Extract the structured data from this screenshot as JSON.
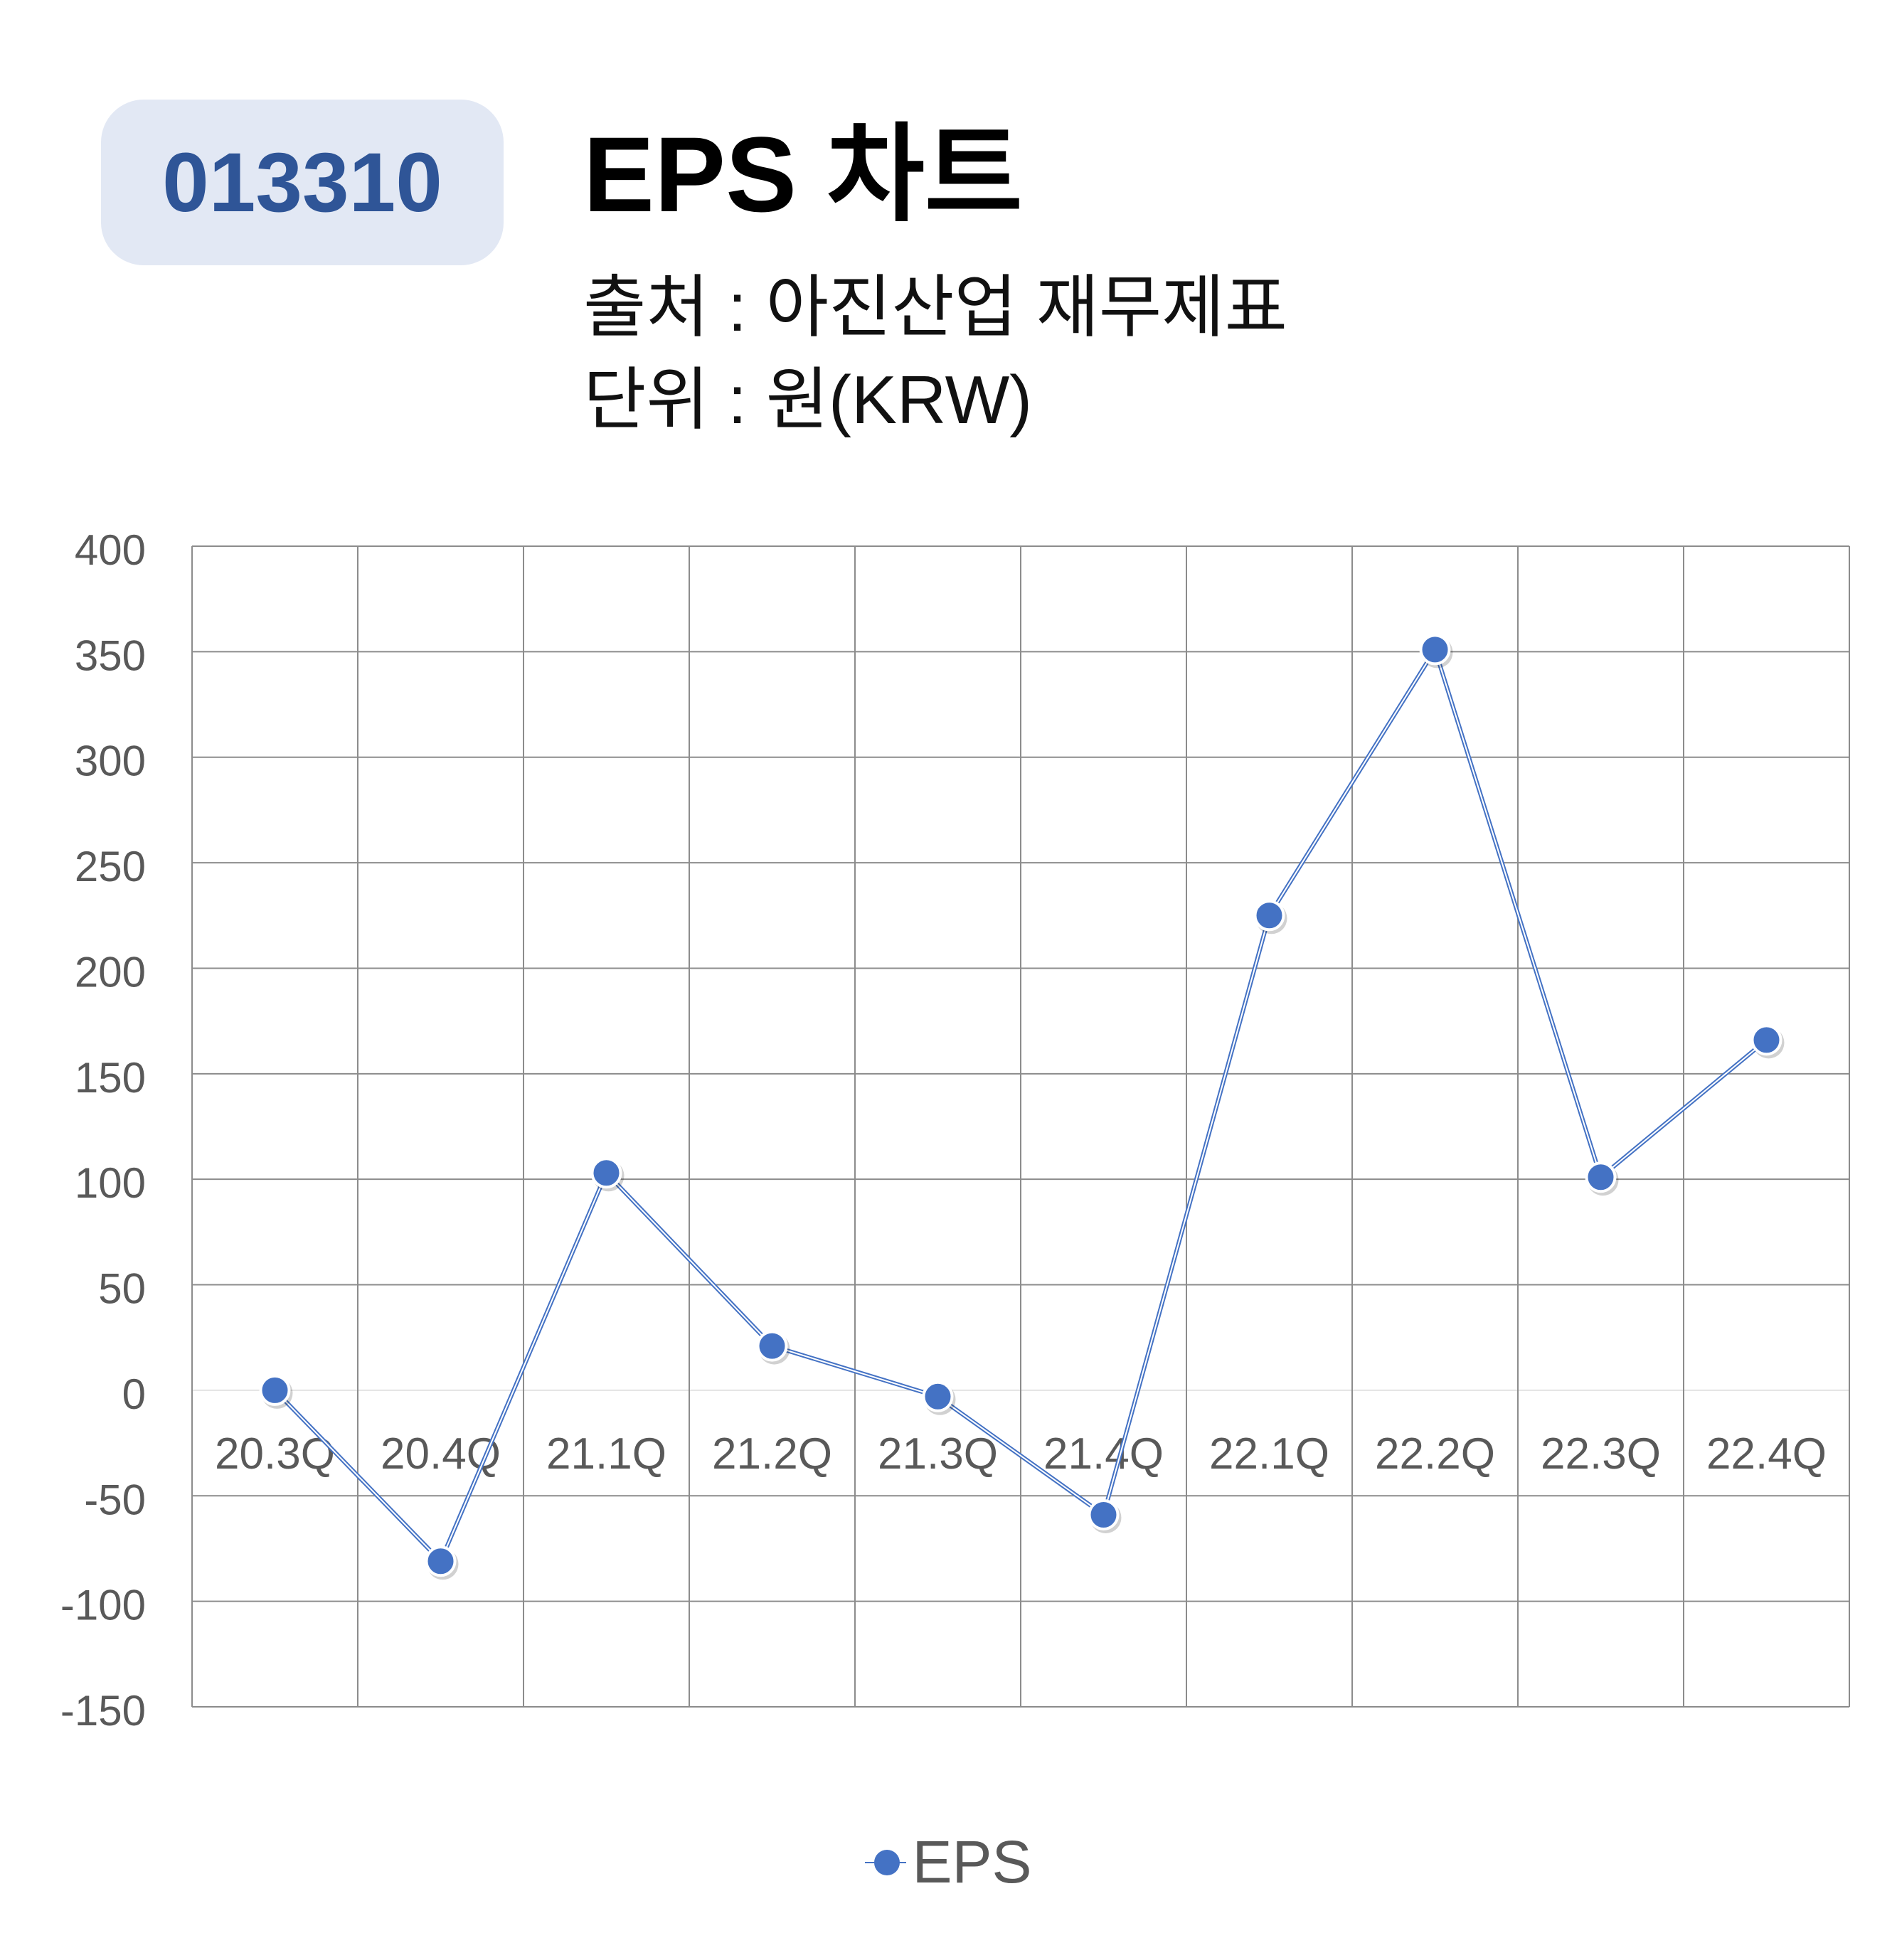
{
  "header": {
    "ticker": "013310",
    "title": "EPS 차트",
    "source": "출처 : 아진산업 재무제표",
    "unit": "단위 : 원(KRW)"
  },
  "colors": {
    "badge_bg": "#e2e8f4",
    "badge_text": "#2f5597",
    "series": "#4472c4",
    "grid": "#8c8c8c",
    "axis_text": "#595959"
  },
  "chart_data": {
    "type": "line",
    "categories": [
      "20.3Q",
      "20.4Q",
      "21.1Q",
      "21.2Q",
      "21.3Q",
      "21.4Q",
      "22.1Q",
      "22.2Q",
      "22.3Q",
      "22.4Q"
    ],
    "series": [
      {
        "name": "EPS",
        "values": [
          0,
          -81,
          103,
          21,
          -3,
          -59,
          225,
          351,
          101,
          166
        ]
      }
    ],
    "ylim": [
      -150,
      400
    ],
    "yticks": [
      400,
      350,
      300,
      250,
      200,
      150,
      100,
      50,
      0,
      -50,
      -100,
      -150
    ],
    "grid": true,
    "legend": "bottom"
  }
}
